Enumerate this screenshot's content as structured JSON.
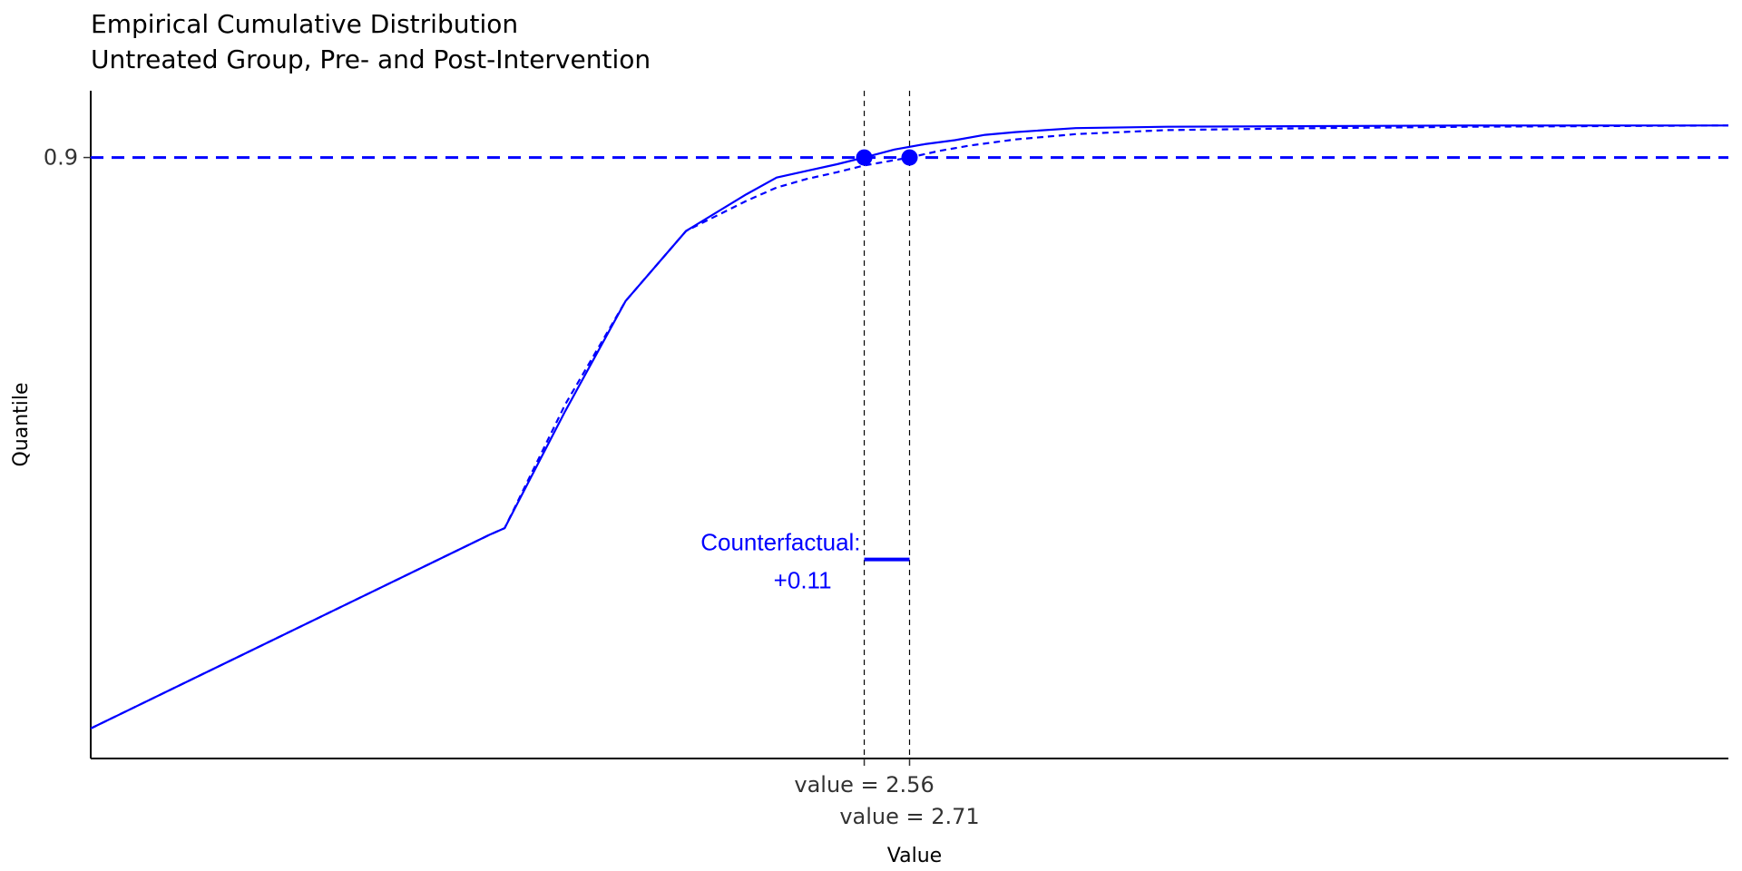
{
  "chart_data": {
    "type": "line",
    "title": "Empirical Cumulative Distribution",
    "subtitle": "Untreated Group, Pre- and Post-Intervention",
    "xlabel": "Value",
    "ylabel": "Quantile",
    "xlim": [
      0,
      5.42
    ],
    "ylim": [
      0.0,
      1.0
    ],
    "y_ticks": [
      {
        "value": 0.9,
        "label": "0.9"
      }
    ],
    "x_markers": [
      {
        "value": 2.56,
        "label": "value = 2.56"
      },
      {
        "value": 2.71,
        "label": "value = 2.71"
      }
    ],
    "hline": {
      "value": 0.9,
      "style": "dashed"
    },
    "points": [
      {
        "x": 2.56,
        "y": 0.9
      },
      {
        "x": 2.71,
        "y": 0.9
      }
    ],
    "annotation": {
      "line1": "Counterfactual:",
      "line2": "+0.11",
      "y": 0.298
    },
    "grid": false,
    "color": "#0000ff",
    "series": [
      {
        "style": "solid",
        "x": [
          0.0,
          1.32,
          1.37,
          1.57,
          1.77,
          1.97,
          2.17,
          2.27,
          2.37,
          2.47,
          2.56,
          2.66,
          2.76,
          2.86,
          2.96,
          3.06,
          3.26,
          3.56,
          4.06,
          4.56,
          5.42
        ],
        "y": [
          0.045,
          0.335,
          0.345,
          0.52,
          0.685,
          0.79,
          0.845,
          0.87,
          0.88,
          0.89,
          0.9,
          0.912,
          0.92,
          0.926,
          0.934,
          0.938,
          0.944,
          0.946,
          0.947,
          0.948,
          0.948
        ]
      },
      {
        "style": "dashed",
        "x": [
          0.0,
          1.32,
          1.37,
          1.57,
          1.77,
          1.97,
          2.17,
          2.27,
          2.37,
          2.47,
          2.56,
          2.66,
          2.71,
          2.81,
          2.91,
          3.06,
          3.26,
          3.56,
          4.06,
          4.56,
          5.42
        ],
        "y": [
          0.045,
          0.335,
          0.345,
          0.53,
          0.685,
          0.79,
          0.835,
          0.855,
          0.868,
          0.878,
          0.888,
          0.896,
          0.9,
          0.91,
          0.918,
          0.927,
          0.935,
          0.941,
          0.944,
          0.946,
          0.948
        ]
      }
    ]
  }
}
